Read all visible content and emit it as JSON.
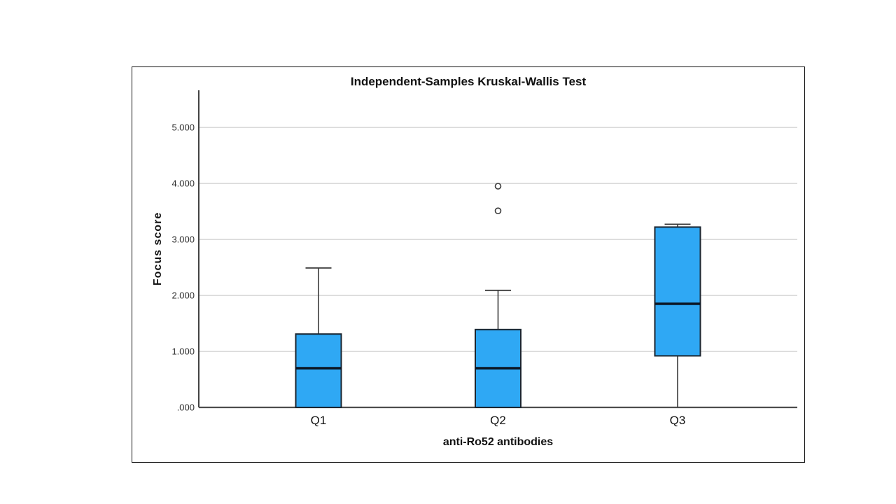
{
  "chart_data": {
    "type": "boxplot",
    "title": "Independent-Samples Kruskal-Wallis Test",
    "xlabel": "anti-Ro52 antibodies",
    "ylabel": "Focus score",
    "categories": [
      "Q1",
      "Q2",
      "Q3"
    ],
    "y_ticks": [
      {
        "label": ".000",
        "value": 0
      },
      {
        "label": "1.000",
        "value": 1
      },
      {
        "label": "2.000",
        "value": 2
      },
      {
        "label": "3.000",
        "value": 3
      },
      {
        "label": "4.000",
        "value": 4
      },
      {
        "label": "5.000",
        "value": 5
      }
    ],
    "ylim": [
      0,
      5.66
    ],
    "grid": true,
    "legend": "none",
    "series": [
      {
        "category": "Q1",
        "whisker_low": 0.0,
        "q1": 0.0,
        "median": 0.7,
        "q3": 1.31,
        "whisker_high": 2.49,
        "outliers": []
      },
      {
        "category": "Q2",
        "whisker_low": 0.0,
        "q1": 0.0,
        "median": 0.7,
        "q3": 1.39,
        "whisker_high": 2.09,
        "outliers": [
          3.51,
          3.95
        ]
      },
      {
        "category": "Q3",
        "whisker_low": 0.0,
        "q1": 0.92,
        "median": 1.85,
        "q3": 3.22,
        "whisker_high": 3.27,
        "outliers": []
      }
    ],
    "colors": {
      "box_fill": "#2FA8F4",
      "box_stroke": "#1B2631",
      "median": "#0B1523",
      "whisker": "#3A3A3A",
      "gridline": "#C9C9C9",
      "baseline": "#4D4D4D",
      "y_axis": "#434343",
      "outlier_stroke": "#3A3A3A",
      "border": "#101010",
      "text": "#111111"
    }
  }
}
